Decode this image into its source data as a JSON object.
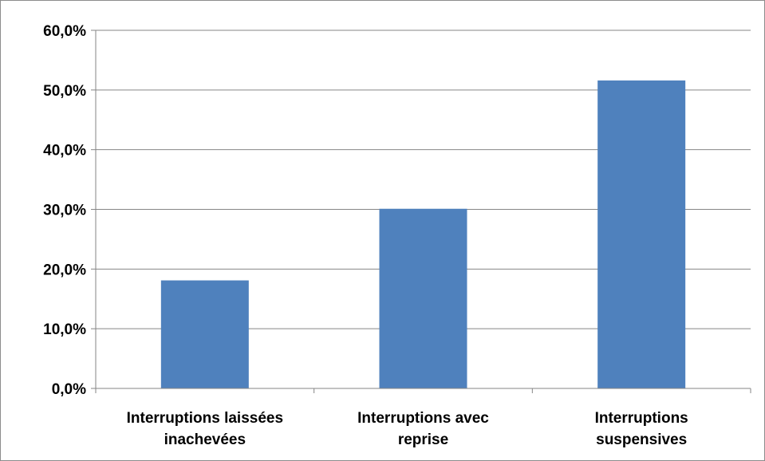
{
  "chart_data": {
    "type": "bar",
    "categories": [
      [
        "Interruptions laissées",
        "inachevées"
      ],
      [
        "Interruptions avec",
        "reprise"
      ],
      [
        "Interruptions",
        "suspensives"
      ]
    ],
    "values": [
      18.1,
      30.1,
      51.6
    ],
    "ylim": [
      0,
      60
    ],
    "yticks": [
      0,
      10,
      20,
      30,
      40,
      50,
      60
    ],
    "ytick_labels": [
      "0,0%",
      "10,0%",
      "20,0%",
      "30,0%",
      "40,0%",
      "50,0%",
      "60,0%"
    ],
    "grid": true,
    "legend": "none",
    "colors": {
      "bar": "#4f81bd",
      "grid": "#868686",
      "axis": "#868686"
    }
  }
}
